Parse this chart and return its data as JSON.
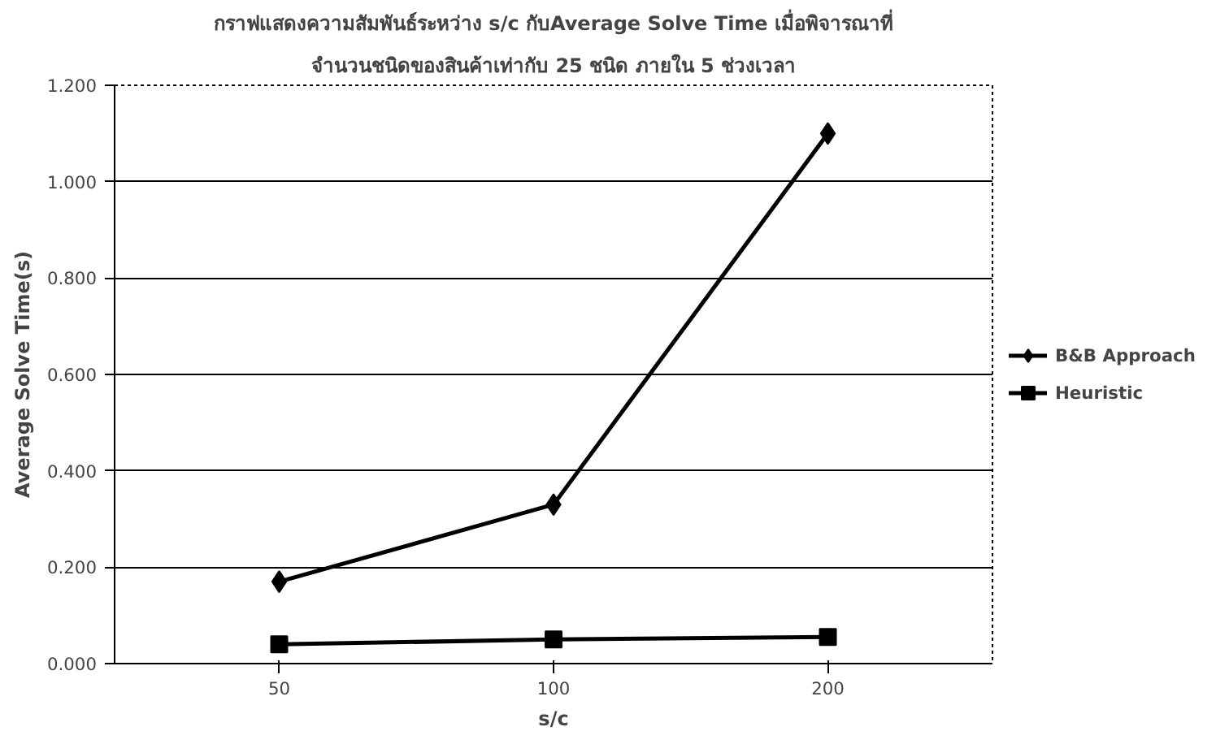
{
  "chart_data": {
    "type": "line",
    "title": "กราฟแสดงความสัมพันธ์ระหว่าง s/c กับAverage Solve Time เมื่อพิจารณาที่",
    "subtitle": "จำนวนชนิดของสินค้าเท่ากับ 25 ชนิด ภายใน 5 ช่วงเวลา",
    "xlabel": "s/c",
    "ylabel": "Average Solve Time(s)",
    "categories": [
      "50",
      "100",
      "200"
    ],
    "series": [
      {
        "name": "B&B Approach",
        "color": "#000000",
        "marker": "diamond",
        "values": [
          0.17,
          0.33,
          1.1
        ]
      },
      {
        "name": "Heuristic",
        "color": "#000000",
        "marker": "square",
        "values": [
          0.04,
          0.05,
          0.055
        ]
      }
    ],
    "ylim": [
      0,
      1.2
    ],
    "yticks": [
      {
        "value": 0,
        "label": "0.000"
      },
      {
        "value": 0.2,
        "label": "0.200"
      },
      {
        "value": 0.4,
        "label": "0.400"
      },
      {
        "value": 0.6,
        "label": "0.600"
      },
      {
        "value": 0.8,
        "label": "0.800"
      },
      {
        "value": 1.0,
        "label": "1.000"
      },
      {
        "value": 1.2,
        "label": "1.200"
      }
    ],
    "grid": "y",
    "legend": "right",
    "line_style": "solid"
  }
}
